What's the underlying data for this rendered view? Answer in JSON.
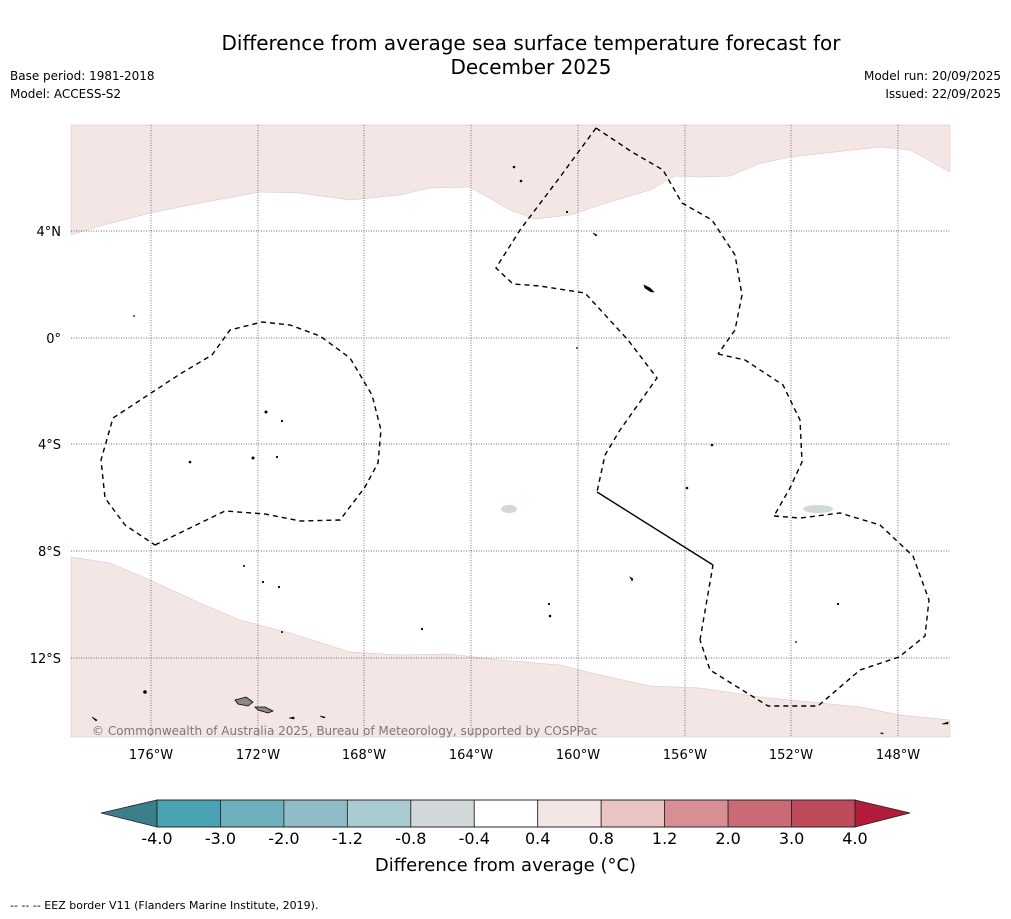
{
  "title_line1": "Difference from average sea surface temperature forecast for",
  "title_line2": "December 2025",
  "base_period": "Base period: 1981-2018",
  "model": "Model: ACCESS-S2",
  "model_run": "Model run: 20/09/2025",
  "issued": "Issued: 22/09/2025",
  "lat_labels": [
    "4°N",
    "0°",
    "4°S",
    "8°S",
    "12°S"
  ],
  "lon_labels": [
    "176°W",
    "172°W",
    "168°W",
    "164°W",
    "160°W",
    "156°W",
    "152°W",
    "148°W"
  ],
  "copyright": "© Commonwealth of Australia 2025, Bureau of Meteorology, supported by COSPPac",
  "colorbar": {
    "title": "Difference from average (°C)",
    "ticks": [
      "-4.0",
      "-3.0",
      "-2.0",
      "-1.2",
      "-0.8",
      "-0.4",
      "0.4",
      "0.8",
      "1.2",
      "2.0",
      "3.0",
      "4.0"
    ],
    "colors": [
      "#4aa3b3",
      "#6fb0bd",
      "#8fbcc6",
      "#aacbd0",
      "#d2d8d9",
      "#ffffff",
      "#f3e6e5",
      "#e8c5c1",
      "#d78f95",
      "#c96a76",
      "#bf4a5b"
    ],
    "under_color": "#3a7f89",
    "over_color": "#b31c3c"
  },
  "anomaly_fill_color": "#f4e6e5",
  "footer": "-- -- -- EEZ border V11 (Flanders Marine Institute, 2019)."
}
